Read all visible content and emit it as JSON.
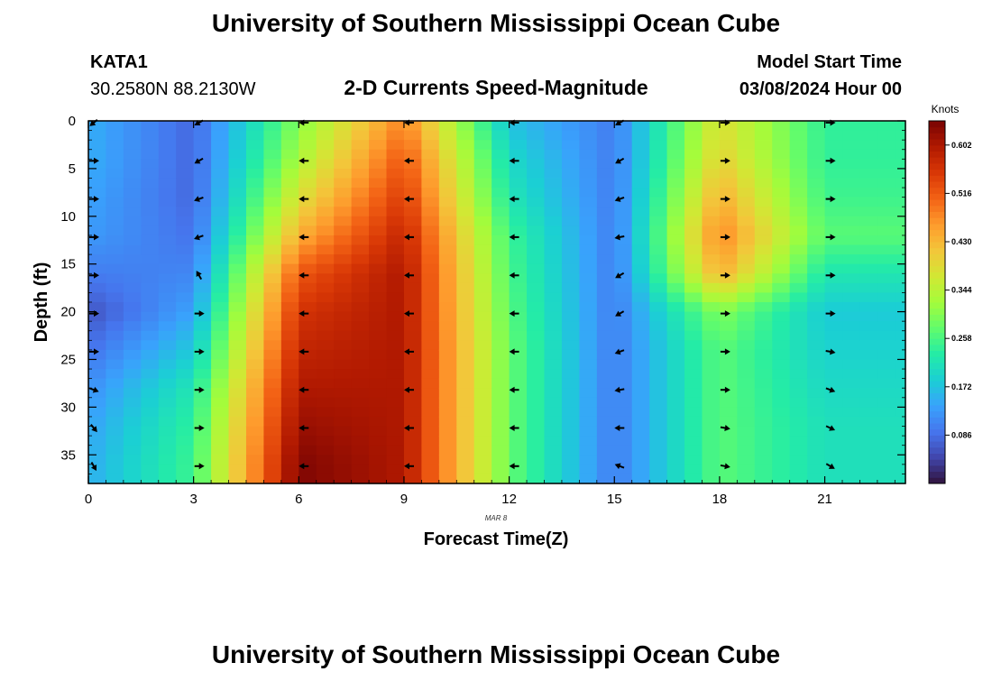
{
  "header": {
    "title": "University of Southern Mississippi Ocean Cube",
    "station": "KATA1",
    "coords": "30.2580N  88.2130W",
    "subtitle": "2-D Currents Speed-Magnitude",
    "start_label": "Model Start Time",
    "start_value": "03/08/2024 Hour 00"
  },
  "footer": {
    "title": "University of Southern Mississippi Ocean Cube"
  },
  "colors": {
    "colormap": [
      "#30123b",
      "#4145ab",
      "#4675ed",
      "#39a2fc",
      "#1bcfd4",
      "#24eca6",
      "#61fc6c",
      "#a4fc3b",
      "#d1e834",
      "#f3c63a",
      "#fe9b2d",
      "#f36315",
      "#d93806",
      "#b11901",
      "#7a0403"
    ],
    "arrow": "#000000"
  },
  "chart_data": {
    "type": "heatmap",
    "title": "2-D Currents Speed-Magnitude",
    "xlabel": "Forecast Time(Z)",
    "ylabel": "Depth (ft)",
    "xlim": [
      0,
      23.3
    ],
    "ylim": [
      0,
      38
    ],
    "y_inverted": true,
    "x_ticks": [
      0,
      3,
      6,
      9,
      12,
      15,
      18,
      21
    ],
    "x_tick_labels": [
      "0",
      "3",
      "6",
      "9",
      "12",
      "15",
      "18",
      "21"
    ],
    "y_ticks": [
      0,
      5,
      10,
      15,
      20,
      25,
      30,
      35
    ],
    "y_tick_labels": [
      "0",
      "5",
      "10",
      "15",
      "20",
      "25",
      "30",
      "35"
    ],
    "date_label": "MAR 8",
    "colorbar": {
      "label": "Knots",
      "range": [
        0.0,
        0.645
      ],
      "ticks": [
        0.086,
        0.172,
        0.258,
        0.344,
        0.43,
        0.516,
        0.602
      ],
      "tick_labels": [
        "0.086",
        "0.172",
        "0.258",
        "0.344",
        "0.430",
        "0.516",
        "0.602"
      ]
    },
    "hours": [
      0,
      3,
      6,
      9,
      12,
      15,
      18,
      21
    ],
    "depths": [
      0,
      4,
      8,
      12,
      16,
      20,
      24,
      28,
      32,
      36
    ],
    "speed": [
      [
        0.15,
        0.08,
        0.3,
        0.48,
        0.17,
        0.1,
        0.38,
        0.24
      ],
      [
        0.15,
        0.08,
        0.33,
        0.52,
        0.2,
        0.1,
        0.4,
        0.24
      ],
      [
        0.14,
        0.08,
        0.38,
        0.55,
        0.22,
        0.1,
        0.44,
        0.25
      ],
      [
        0.13,
        0.09,
        0.44,
        0.58,
        0.25,
        0.1,
        0.48,
        0.27
      ],
      [
        0.1,
        0.11,
        0.52,
        0.6,
        0.26,
        0.1,
        0.44,
        0.22
      ],
      [
        0.06,
        0.14,
        0.56,
        0.6,
        0.27,
        0.1,
        0.3,
        0.18
      ],
      [
        0.09,
        0.18,
        0.58,
        0.6,
        0.28,
        0.1,
        0.27,
        0.19
      ],
      [
        0.12,
        0.22,
        0.6,
        0.6,
        0.28,
        0.1,
        0.27,
        0.2
      ],
      [
        0.14,
        0.24,
        0.62,
        0.6,
        0.28,
        0.1,
        0.27,
        0.21
      ],
      [
        0.15,
        0.25,
        0.64,
        0.6,
        0.28,
        0.1,
        0.27,
        0.21
      ]
    ],
    "direction_deg": [
      [
        140,
        150,
        180,
        180,
        180,
        150,
        0,
        0
      ],
      [
        0,
        150,
        180,
        180,
        180,
        150,
        0,
        0
      ],
      [
        0,
        160,
        180,
        180,
        180,
        160,
        0,
        0
      ],
      [
        0,
        160,
        180,
        180,
        180,
        170,
        0,
        0
      ],
      [
        0,
        240,
        180,
        180,
        180,
        150,
        0,
        0
      ],
      [
        0,
        0,
        180,
        180,
        180,
        150,
        0,
        0
      ],
      [
        0,
        0,
        180,
        180,
        180,
        160,
        0,
        10
      ],
      [
        20,
        0,
        180,
        180,
        180,
        170,
        0,
        20
      ],
      [
        50,
        0,
        180,
        180,
        180,
        180,
        10,
        25
      ],
      [
        60,
        0,
        180,
        180,
        180,
        200,
        10,
        30
      ]
    ]
  }
}
